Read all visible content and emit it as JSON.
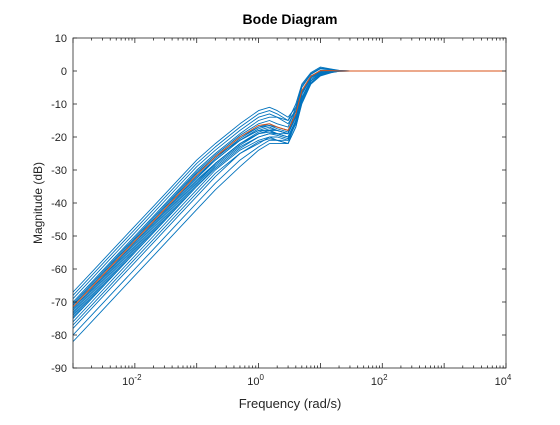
{
  "chart_data": {
    "type": "line",
    "title": "Bode Diagram",
    "xlabel": "Frequency (rad/s)",
    "ylabel": "Magnitude (dB)",
    "x_scale": "log",
    "xlim": [
      0.001,
      10000
    ],
    "ylim": [
      -90,
      10
    ],
    "x_ticks": [
      {
        "value": 0.01,
        "base": "10",
        "exp": "-2"
      },
      {
        "value": 1,
        "base": "10",
        "exp": "0"
      },
      {
        "value": 100,
        "base": "10",
        "exp": "2"
      },
      {
        "value": 10000,
        "base": "10",
        "exp": "4"
      }
    ],
    "y_ticks": [
      10,
      0,
      -10,
      -20,
      -30,
      -40,
      -50,
      -60,
      -70,
      -80,
      -90
    ],
    "grid": false,
    "colors": {
      "samples": "#0072BD",
      "nominal": "#D95319",
      "axes": "#262626"
    },
    "x": [
      0.001,
      0.002,
      0.005,
      0.01,
      0.02,
      0.05,
      0.1,
      0.2,
      0.5,
      1,
      1.5,
      2,
      3,
      4,
      5,
      7,
      10,
      15,
      20,
      30,
      50,
      100,
      1000,
      10000
    ],
    "series": [
      {
        "values": [
          -71,
          -65,
          -57,
          -51,
          -45,
          -37,
          -31,
          -26,
          -21,
          -18,
          -18,
          -19,
          -19,
          -14,
          -7,
          -2,
          0,
          0.2,
          0.1,
          0,
          0,
          0,
          0,
          0
        ]
      },
      {
        "values": [
          -67,
          -61,
          -53,
          -47,
          -41,
          -33,
          -27,
          -22,
          -16,
          -12,
          -11,
          -12,
          -14,
          -11,
          -6,
          -2,
          -0.4,
          0,
          0,
          0,
          0,
          0,
          0,
          0
        ]
      },
      {
        "values": [
          -68,
          -62,
          -54,
          -48,
          -42,
          -34,
          -28,
          -23,
          -17,
          -13,
          -12,
          -13,
          -15,
          -12,
          -6,
          -2,
          -0.5,
          0,
          0,
          0,
          0,
          0,
          0,
          0
        ]
      },
      {
        "values": [
          -70,
          -64,
          -56,
          -50,
          -44,
          -36,
          -30,
          -25,
          -19,
          -15,
          -14,
          -14,
          -15,
          -10,
          -4,
          -0.5,
          1.2,
          0.6,
          0.2,
          0,
          0,
          0,
          0,
          0
        ]
      },
      {
        "values": [
          -71,
          -65,
          -57,
          -51,
          -45,
          -37,
          -31,
          -26,
          -20,
          -17,
          -16,
          -17,
          -18,
          -12,
          -5,
          -1,
          0.7,
          0.4,
          0.1,
          0,
          0,
          0,
          0,
          0
        ]
      },
      {
        "values": [
          -72,
          -66,
          -58,
          -52,
          -46,
          -38,
          -32,
          -27,
          -21,
          -18,
          -17,
          -18,
          -19,
          -13,
          -6,
          -1.5,
          0,
          0.2,
          0,
          0,
          0,
          0,
          0,
          0
        ]
      },
      {
        "values": [
          -73,
          -67,
          -59,
          -53,
          -47,
          -39,
          -33,
          -28,
          -22,
          -19,
          -18,
          -18,
          -19,
          -14,
          -7,
          -2,
          -0.3,
          0,
          0,
          0,
          0,
          0,
          0,
          0
        ]
      },
      {
        "values": [
          -74,
          -68,
          -60,
          -54,
          -48,
          -40,
          -34,
          -28,
          -22,
          -19,
          -18,
          -19,
          -20,
          -15,
          -8,
          -3,
          -0.8,
          -0.2,
          0,
          0,
          0,
          0,
          0,
          0
        ]
      },
      {
        "values": [
          -75,
          -69,
          -61,
          -55,
          -49,
          -41,
          -35,
          -29,
          -23,
          -20,
          -19,
          -19,
          -20,
          -15,
          -8,
          -3,
          -1,
          -0.3,
          0,
          0,
          0,
          0,
          0,
          0
        ]
      },
      {
        "values": [
          -76,
          -70,
          -62,
          -56,
          -50,
          -42,
          -36,
          -30,
          -24,
          -21,
          -20,
          -20,
          -21,
          -16,
          -9,
          -3.5,
          -1.2,
          -0.4,
          -0.1,
          0,
          0,
          0,
          0,
          0
        ]
      },
      {
        "values": [
          -78,
          -72,
          -64,
          -58,
          -52,
          -44,
          -38,
          -32,
          -25,
          -22,
          -20,
          -21,
          -22,
          -17,
          -10,
          -4,
          -1.5,
          -0.5,
          -0.1,
          0,
          0,
          0,
          0,
          0
        ]
      },
      {
        "values": [
          -80,
          -74,
          -66,
          -60,
          -54,
          -46,
          -40,
          -34,
          -27,
          -23,
          -21,
          -21,
          -21,
          -15,
          -8,
          -3,
          -1,
          -0.3,
          0,
          0,
          0,
          0,
          0,
          0
        ]
      },
      {
        "values": [
          -82,
          -76,
          -68,
          -62,
          -56,
          -48,
          -42,
          -36,
          -29,
          -24,
          -22,
          -22,
          -22,
          -15,
          -8,
          -3,
          -0.9,
          -0.2,
          0,
          0,
          0,
          0,
          0,
          0
        ]
      },
      {
        "values": [
          -69,
          -63,
          -55,
          -49,
          -43,
          -35,
          -29,
          -24,
          -18,
          -14,
          -13,
          -14,
          -16,
          -12,
          -6,
          -2,
          -0.6,
          -0.1,
          0,
          0,
          0,
          0,
          0,
          0
        ]
      },
      {
        "values": [
          -73.5,
          -67.5,
          -59.5,
          -53.5,
          -47.5,
          -39.5,
          -33.5,
          -28,
          -22,
          -18.5,
          -17.5,
          -18,
          -19,
          -14,
          -7,
          -2.5,
          -0.6,
          0,
          0,
          0,
          0,
          0,
          0,
          0
        ]
      },
      {
        "values": [
          -75,
          -69,
          -61,
          -55,
          -49,
          -41,
          -35,
          -29.5,
          -23.5,
          -20,
          -19,
          -19.5,
          -20.5,
          -15.5,
          -8.5,
          -3,
          -1,
          -0.2,
          0,
          0,
          0,
          0,
          0,
          0
        ]
      },
      {
        "values": [
          -72.5,
          -66.5,
          -58.5,
          -52.5,
          -46.5,
          -38.5,
          -32.5,
          -27,
          -21,
          -17.5,
          -16.5,
          -17,
          -18,
          -13,
          -6,
          -1.8,
          0.2,
          0.3,
          0,
          0,
          0,
          0,
          0,
          0
        ]
      },
      {
        "values": [
          -77,
          -71,
          -63,
          -57,
          -51,
          -43,
          -37,
          -31,
          -25,
          -21.5,
          -20.5,
          -21,
          -22,
          -17,
          -9.5,
          -3.8,
          -1.3,
          -0.4,
          -0.1,
          0,
          0,
          0,
          0,
          0
        ]
      },
      {
        "values": [
          -70.5,
          -64.5,
          -56.5,
          -50.5,
          -44.5,
          -36.5,
          -30.5,
          -25.5,
          -19.5,
          -16,
          -15,
          -16,
          -17,
          -11,
          -4.5,
          -0.8,
          0.9,
          0.5,
          0.1,
          0,
          0,
          0,
          0,
          0
        ]
      },
      {
        "values": [
          -74.5,
          -68.5,
          -60.5,
          -54.5,
          -48.5,
          -40.5,
          -34.5,
          -28.5,
          -22.5,
          -19,
          -18.5,
          -19,
          -20,
          -15,
          -8,
          -3,
          -0.9,
          -0.2,
          0,
          0,
          0,
          0,
          0,
          0
        ]
      },
      {
        "values": [
          -72,
          -66,
          -58,
          -52,
          -46,
          -38,
          -32,
          -26.5,
          -20.5,
          -17,
          -16.5,
          -17.5,
          -18.5,
          -13.5,
          -6.5,
          -2,
          -0.4,
          0,
          0,
          0,
          0,
          0,
          0,
          0
        ]
      },
      {
        "values": [
          -71.5,
          -65.5,
          -57.5,
          -51.5,
          -45.5,
          -37.5,
          -31.5,
          -26,
          -20,
          -16.5,
          -16,
          -17,
          -18,
          -13,
          -6,
          -1.6,
          0.1,
          0.1,
          0,
          0,
          0,
          0,
          0,
          0
        ],
        "role": "nominal"
      }
    ]
  }
}
